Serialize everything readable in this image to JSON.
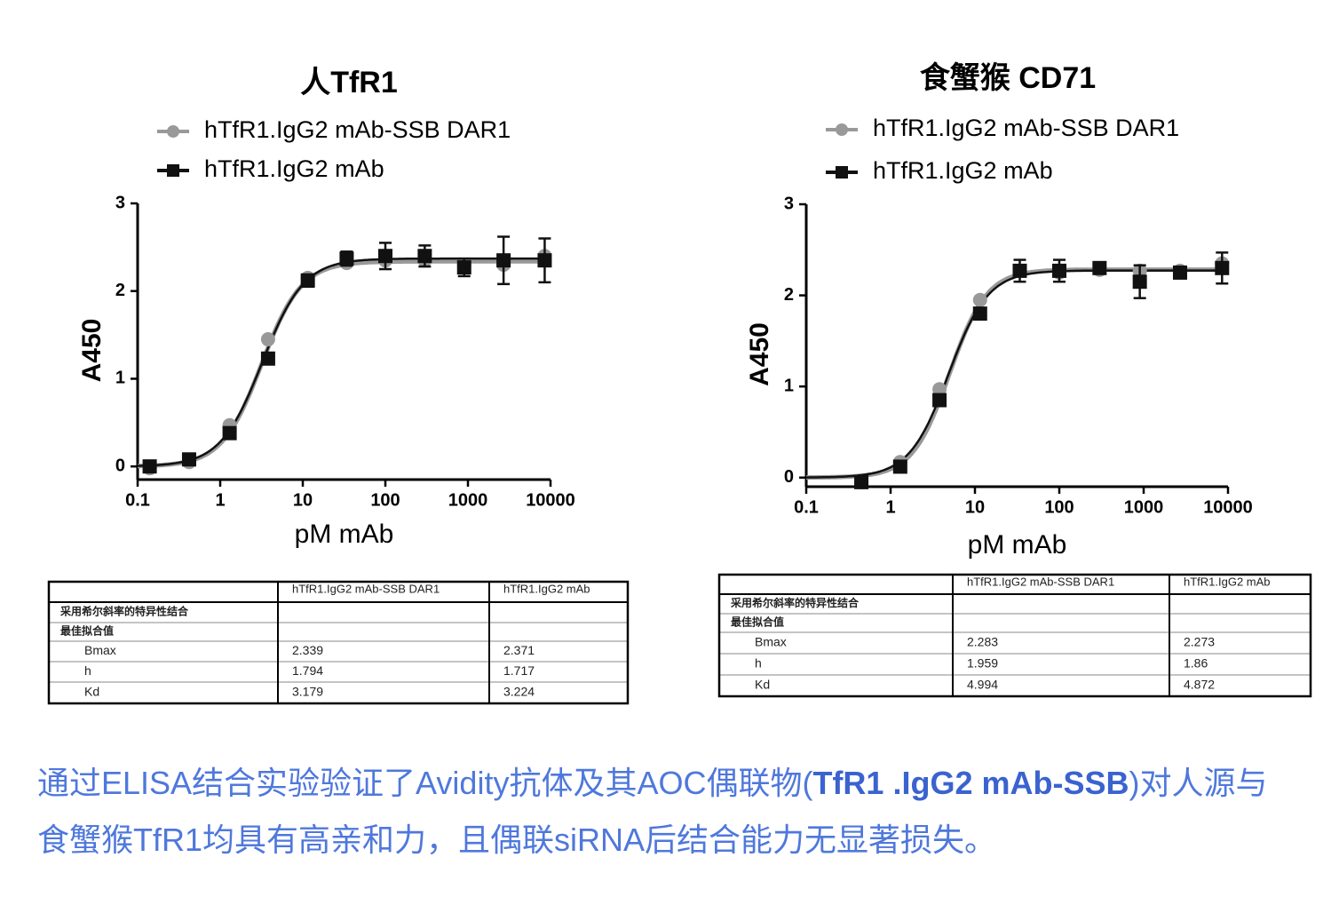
{
  "chart_data": [
    {
      "type": "scatter",
      "title": "人TfR1",
      "xlabel": "pM mAb",
      "ylabel": "A450",
      "xscale": "log",
      "xlim": [
        0.1,
        10000
      ],
      "ylim": [
        -0.15,
        3
      ],
      "xticks": [
        0.1,
        1,
        10,
        100,
        1000,
        10000
      ],
      "yticks": [
        0,
        1,
        2,
        3
      ],
      "x": [
        0.14,
        0.42,
        1.3,
        3.8,
        11.5,
        34,
        100,
        300,
        900,
        2700,
        8500
      ],
      "series": [
        {
          "name": "hTfR1.IgG2 mAb-SSB DAR1",
          "color": "#999999",
          "marker": "circle",
          "values": [
            -0.02,
            0.05,
            0.47,
            1.45,
            2.15,
            2.32,
            2.35,
            2.35,
            2.3,
            2.3,
            2.4
          ]
        },
        {
          "name": "hTfR1.IgG2 mAb",
          "color": "#111111",
          "marker": "square",
          "values": [
            0.0,
            0.08,
            0.38,
            1.23,
            2.12,
            2.37,
            2.4,
            2.4,
            2.27,
            2.35,
            2.35
          ],
          "errors": [
            0.02,
            0.03,
            0.05,
            0.05,
            0.07,
            0.08,
            0.15,
            0.12,
            0.1,
            0.27,
            0.25
          ]
        }
      ]
    },
    {
      "type": "scatter",
      "title": "食蟹猴 CD71",
      "xlabel": "pM mAb",
      "ylabel": "A450",
      "xscale": "log",
      "xlim": [
        0.1,
        10000
      ],
      "ylim": [
        -0.1,
        3
      ],
      "xticks": [
        0.1,
        1,
        10,
        100,
        1000,
        10000
      ],
      "yticks": [
        0,
        1,
        2,
        3
      ],
      "x": [
        0.45,
        1.3,
        3.8,
        11.5,
        34,
        100,
        300,
        900,
        2700,
        8500
      ],
      "series": [
        {
          "name": "hTfR1.IgG2 mAb-SSB DAR1",
          "color": "#999999",
          "marker": "circle",
          "values": [
            -0.05,
            0.17,
            0.97,
            1.95,
            2.27,
            2.25,
            2.28,
            2.27,
            2.27,
            2.35
          ]
        },
        {
          "name": "hTfR1.IgG2 mAb",
          "color": "#111111",
          "marker": "square",
          "values": [
            -0.05,
            0.12,
            0.85,
            1.8,
            2.27,
            2.27,
            2.3,
            2.15,
            2.25,
            2.3
          ],
          "errors": [
            0.02,
            0.04,
            0.05,
            0.05,
            0.12,
            0.12,
            0.06,
            0.18,
            0.05,
            0.17
          ]
        }
      ]
    }
  ],
  "tables": [
    {
      "columns": [
        "hTfR1.IgG2 mAb-SSB DAR1",
        "hTfR1.IgG2 mAb"
      ],
      "sections": [
        "采用希尔斜率的特异性结合",
        "最佳拟合值"
      ],
      "rows": [
        [
          "Bmax",
          2.339,
          2.371
        ],
        [
          "h",
          1.794,
          1.717
        ],
        [
          "Kd",
          3.179,
          3.224
        ]
      ]
    },
    {
      "columns": [
        "hTfR1.IgG2 mAb-SSB DAR1",
        "hTfR1.IgG2 mAb"
      ],
      "sections": [
        "采用希尔斜率的特异性结合",
        "最佳拟合值"
      ],
      "rows": [
        [
          "Bmax",
          2.283,
          2.273
        ],
        [
          "h",
          1.959,
          1.86
        ],
        [
          "Kd",
          4.994,
          4.872
        ]
      ]
    }
  ],
  "caption": {
    "parts": [
      "通过ELISA结合实验验证了Avidity抗体及其AOC偶联物(",
      "TfR1 .IgG2 mAb-SSB",
      ")对人源与食蟹猴TfR1均具有高亲和力，且偶联siRNA后结合能力无显著损失。"
    ]
  }
}
